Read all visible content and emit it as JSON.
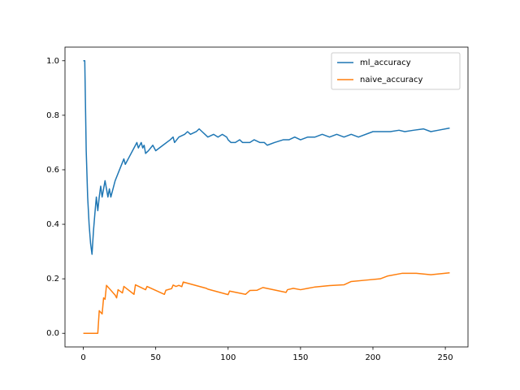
{
  "chart_data": {
    "type": "line",
    "xlim": [
      -12.65,
      265.65
    ],
    "xticks": [
      0,
      50,
      100,
      150,
      200,
      250
    ],
    "ylim": [
      -0.05,
      1.05
    ],
    "yticks": [
      {
        "value": 0,
        "label": "0.0"
      },
      0.2,
      0.4,
      0.6,
      0.8,
      {
        "value": 1,
        "label": "1.0"
      }
    ],
    "legend": "upper right",
    "series": [
      {
        "name": "ml_accuracy",
        "color": "#1f77b4",
        "x": [
          0,
          1,
          2,
          3,
          4,
          5,
          6,
          7,
          8,
          9,
          10,
          11,
          12,
          13,
          14,
          15,
          16,
          17,
          18,
          19,
          20,
          22,
          25,
          28,
          29,
          32,
          35,
          37,
          38,
          40,
          41,
          42,
          43,
          45,
          48,
          50,
          55,
          60,
          62,
          63,
          66,
          70,
          72,
          74,
          78,
          80,
          82,
          84,
          86,
          90,
          93,
          96,
          99,
          100,
          102,
          105,
          108,
          110,
          115,
          118,
          122,
          125,
          127,
          132,
          138,
          142,
          146,
          150,
          155,
          160,
          165,
          170,
          175,
          180,
          185,
          190,
          200,
          205,
          212,
          218,
          222,
          228,
          235,
          240,
          245,
          253
        ],
        "values": [
          1.0,
          1.0,
          0.67,
          0.5,
          0.4,
          0.33,
          0.29,
          0.375,
          0.44,
          0.5,
          0.45,
          0.5,
          0.54,
          0.5,
          0.53,
          0.56,
          0.53,
          0.5,
          0.53,
          0.5,
          0.52,
          0.56,
          0.6,
          0.64,
          0.62,
          0.65,
          0.68,
          0.7,
          0.68,
          0.7,
          0.68,
          0.69,
          0.66,
          0.67,
          0.69,
          0.67,
          0.69,
          0.71,
          0.72,
          0.7,
          0.72,
          0.73,
          0.74,
          0.73,
          0.74,
          0.75,
          0.74,
          0.73,
          0.72,
          0.73,
          0.72,
          0.73,
          0.72,
          0.71,
          0.7,
          0.7,
          0.71,
          0.7,
          0.7,
          0.71,
          0.7,
          0.7,
          0.69,
          0.7,
          0.71,
          0.71,
          0.72,
          0.71,
          0.72,
          0.72,
          0.73,
          0.72,
          0.73,
          0.72,
          0.73,
          0.72,
          0.74,
          0.74,
          0.74,
          0.745,
          0.74,
          0.745,
          0.75,
          0.74,
          0.745,
          0.753
        ]
      },
      {
        "name": "naive_accuracy",
        "color": "#ff7f0e",
        "x": [
          0,
          10,
          11,
          12,
          13,
          14,
          15,
          16,
          22,
          23,
          24,
          27,
          28,
          35,
          36,
          43,
          44,
          56,
          57,
          61,
          62,
          64,
          66,
          68,
          69,
          85,
          86,
          100,
          101,
          112,
          115,
          120,
          124,
          140,
          141,
          145,
          150,
          155,
          160,
          170,
          180,
          185,
          195,
          205,
          210,
          220,
          230,
          240,
          253
        ],
        "values": [
          0,
          0,
          0.083,
          0.077,
          0.071,
          0.13,
          0.125,
          0.176,
          0.14,
          0.13,
          0.16,
          0.148,
          0.172,
          0.143,
          0.178,
          0.16,
          0.172,
          0.143,
          0.158,
          0.164,
          0.177,
          0.172,
          0.176,
          0.171,
          0.188,
          0.165,
          0.162,
          0.142,
          0.155,
          0.143,
          0.157,
          0.158,
          0.168,
          0.15,
          0.16,
          0.165,
          0.16,
          0.165,
          0.17,
          0.175,
          0.178,
          0.19,
          0.195,
          0.2,
          0.21,
          0.22,
          0.22,
          0.215,
          0.222
        ]
      }
    ]
  }
}
